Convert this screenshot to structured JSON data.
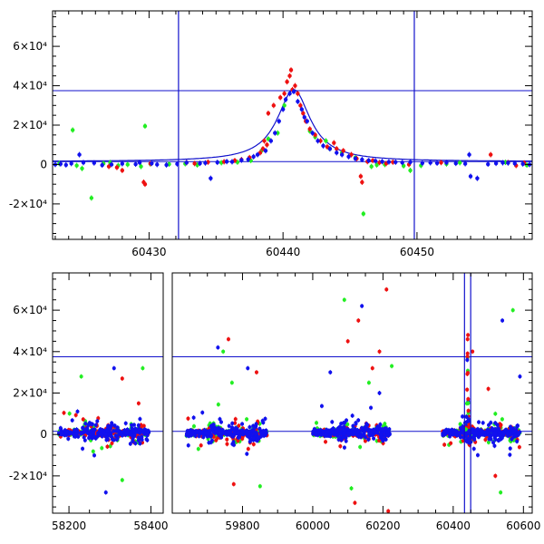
{
  "colors": {
    "series_red": "#ee1111",
    "series_green": "#22ee22",
    "series_blue": "#1111ee",
    "model_line": "#1111cc",
    "frame": "#000000"
  },
  "chart_data": [
    {
      "type": "scatter",
      "title": "",
      "xlabel": "",
      "ylabel": "",
      "xlim": [
        60422.8,
        60458.6
      ],
      "ylim": [
        -38000,
        78000
      ],
      "grid": false,
      "x_ticks": [
        {
          "value": 60430,
          "label": "60430"
        },
        {
          "value": 60440,
          "label": "60440"
        },
        {
          "value": 60450,
          "label": "60450"
        }
      ],
      "y_ticks": [
        {
          "value": -20000,
          "label": "-2×10⁴"
        },
        {
          "value": 0,
          "label": "0"
        },
        {
          "value": 20000,
          "label": "2×10⁴"
        },
        {
          "value": 40000,
          "label": "4×10⁴"
        },
        {
          "value": 60000,
          "label": "6×10⁴"
        }
      ],
      "reference_lines": {
        "horizontal": [
          37500,
          1500
        ],
        "vertical": [
          60432.2,
          60449.8
        ]
      },
      "model_curve": {
        "type": "lorentzian-like",
        "center": 60440.8,
        "peak": 38000,
        "baseline": 1500,
        "width": 1.5
      },
      "series": [
        {
          "color": "red",
          "points": [
            [
              60427.0,
              -1000
            ],
            [
              60427.6,
              -1500
            ],
            [
              60428.0,
              -3000
            ],
            [
              60429.6,
              -9000
            ],
            [
              60429.7,
              -10000
            ],
            [
              60430.1,
              500
            ],
            [
              60432.8,
              1000
            ],
            [
              60433.4,
              500
            ],
            [
              60434.4,
              1200
            ],
            [
              60435.6,
              1400
            ],
            [
              60436.4,
              2000
            ],
            [
              60436.9,
              2500
            ],
            [
              60437.5,
              3500
            ],
            [
              60438.3,
              6000
            ],
            [
              60438.8,
              10000
            ],
            [
              60438.6,
              12000
            ],
            [
              60438.5,
              8000
            ],
            [
              60438.9,
              26000
            ],
            [
              60439.3,
              30000
            ],
            [
              60439.8,
              34000
            ],
            [
              60440.1,
              36000
            ],
            [
              60440.3,
              42000
            ],
            [
              60440.5,
              45000
            ],
            [
              60440.6,
              48000
            ],
            [
              60440.7,
              38000
            ],
            [
              60440.9,
              40000
            ],
            [
              60441.1,
              36000
            ],
            [
              60441.3,
              30000
            ],
            [
              60441.5,
              26000
            ],
            [
              60441.7,
              22000
            ],
            [
              60442.0,
              18000
            ],
            [
              60442.4,
              15000
            ],
            [
              60442.8,
              12000
            ],
            [
              60443.3,
              9000
            ],
            [
              60443.8,
              11000
            ],
            [
              60444.0,
              8000
            ],
            [
              60444.5,
              7000
            ],
            [
              60445.1,
              5000
            ],
            [
              60445.5,
              3000
            ],
            [
              60445.8,
              -6000
            ],
            [
              60445.9,
              -9000
            ],
            [
              60446.3,
              1500
            ],
            [
              60446.7,
              2000
            ],
            [
              60447.2,
              1000
            ],
            [
              60447.7,
              500
            ],
            [
              60448.2,
              1200
            ],
            [
              60449.4,
              0
            ],
            [
              60451.8,
              1000
            ],
            [
              60455.5,
              5000
            ],
            [
              60456.8,
              1000
            ],
            [
              60457.4,
              -500
            ],
            [
              60458.0,
              800
            ]
          ]
        },
        {
          "color": "green",
          "points": [
            [
              60423.3,
              500
            ],
            [
              60424.3,
              17500
            ],
            [
              60424.6,
              -500
            ],
            [
              60425.0,
              -2000
            ],
            [
              60425.7,
              -17000
            ],
            [
              60426.6,
              500
            ],
            [
              60427.1,
              1000
            ],
            [
              60427.7,
              -500
            ],
            [
              60428.4,
              0
            ],
            [
              60429.4,
              -1000
            ],
            [
              60429.7,
              19500
            ],
            [
              60430.1,
              300
            ],
            [
              60431.5,
              200
            ],
            [
              60432.7,
              400
            ],
            [
              60433.6,
              -200
            ],
            [
              60435.4,
              900
            ],
            [
              60436.6,
              1200
            ],
            [
              60437.6,
              2000
            ],
            [
              60438.4,
              7000
            ],
            [
              60438.9,
              13000
            ],
            [
              60439.6,
              16000
            ],
            [
              60440.1,
              30000
            ],
            [
              60442.0,
              17000
            ],
            [
              60442.4,
              14000
            ],
            [
              60443.2,
              12000
            ],
            [
              60443.5,
              8000
            ],
            [
              60444.4,
              6000
            ],
            [
              60445.4,
              3500
            ],
            [
              60446.0,
              -25000
            ],
            [
              60446.6,
              -1000
            ],
            [
              60447.0,
              -200
            ],
            [
              60447.6,
              0
            ],
            [
              60449.0,
              -700
            ],
            [
              60449.5,
              -3000
            ],
            [
              60450.3,
              -500
            ],
            [
              60452.2,
              300
            ],
            [
              60453.2,
              900
            ],
            [
              60456.6,
              1100
            ],
            [
              60458.2,
              -300
            ]
          ]
        },
        {
          "color": "blue",
          "points": [
            [
              60423.0,
              0
            ],
            [
              60423.4,
              300
            ],
            [
              60423.8,
              -200
            ],
            [
              60424.2,
              500
            ],
            [
              60424.8,
              5000
            ],
            [
              60425.1,
              1000
            ],
            [
              60425.9,
              800
            ],
            [
              60426.5,
              -300
            ],
            [
              60427.2,
              0
            ],
            [
              60428.0,
              400
            ],
            [
              60429.0,
              200
            ],
            [
              60429.3,
              1000
            ],
            [
              60430.2,
              600
            ],
            [
              60430.6,
              0
            ],
            [
              60431.3,
              -200
            ],
            [
              60432.1,
              300
            ],
            [
              60432.8,
              1000
            ],
            [
              60433.8,
              600
            ],
            [
              60434.2,
              800
            ],
            [
              60434.6,
              -7000
            ],
            [
              60435.1,
              1100
            ],
            [
              60435.8,
              1500
            ],
            [
              60436.2,
              1400
            ],
            [
              60436.9,
              2200
            ],
            [
              60437.4,
              2600
            ],
            [
              60437.8,
              4000
            ],
            [
              60438.1,
              5000
            ],
            [
              60438.7,
              7000
            ],
            [
              60439.1,
              12000
            ],
            [
              60439.4,
              16000
            ],
            [
              60439.7,
              22000
            ],
            [
              60440.0,
              28000
            ],
            [
              60440.2,
              33000
            ],
            [
              60440.5,
              36000
            ],
            [
              60440.8,
              37000
            ],
            [
              60441.1,
              32000
            ],
            [
              60441.4,
              28000
            ],
            [
              60441.6,
              24000
            ],
            [
              60441.8,
              22000
            ],
            [
              60442.2,
              16000
            ],
            [
              60442.6,
              12000
            ],
            [
              60443.0,
              9500
            ],
            [
              60443.5,
              8000
            ],
            [
              60444.0,
              6000
            ],
            [
              60444.4,
              5000
            ],
            [
              60444.9,
              4000
            ],
            [
              60445.4,
              3000
            ],
            [
              60445.9,
              2500
            ],
            [
              60446.4,
              2000
            ],
            [
              60446.9,
              1800
            ],
            [
              60447.4,
              1500
            ],
            [
              60447.9,
              1300
            ],
            [
              60448.4,
              1200
            ],
            [
              60448.9,
              1000
            ],
            [
              60449.5,
              1200
            ],
            [
              60450.4,
              700
            ],
            [
              60451.0,
              900
            ],
            [
              60451.5,
              700
            ],
            [
              60452.2,
              1000
            ],
            [
              60452.9,
              600
            ],
            [
              60453.6,
              400
            ],
            [
              60453.9,
              5000
            ],
            [
              60454.0,
              -6000
            ],
            [
              60454.5,
              -7000
            ],
            [
              60455.3,
              200
            ],
            [
              60455.9,
              600
            ],
            [
              60456.4,
              900
            ],
            [
              60456.8,
              800
            ],
            [
              60457.3,
              500
            ],
            [
              60457.9,
              300
            ],
            [
              60458.4,
              0
            ]
          ]
        }
      ]
    },
    {
      "type": "scatter",
      "title": "",
      "xlabel": "",
      "ylabel": "",
      "segments": [
        {
          "xlim": [
            58160,
            58430
          ],
          "x_ticks": [
            {
              "value": 58200,
              "label": "58200"
            },
            {
              "value": 58400,
              "label": "58400"
            }
          ]
        },
        {
          "xlim": [
            59600,
            60625
          ],
          "x_ticks": [
            {
              "value": 59800,
              "label": "59800"
            },
            {
              "value": 60000,
              "label": "60000"
            },
            {
              "value": 60200,
              "label": "60200"
            },
            {
              "value": 60400,
              "label": "60400"
            },
            {
              "value": 60600,
              "label": "60600"
            }
          ]
        }
      ],
      "ylim": [
        -38000,
        78000
      ],
      "grid": false,
      "y_ticks": [
        {
          "value": -20000,
          "label": "-2×10⁴"
        },
        {
          "value": 0,
          "label": "0"
        },
        {
          "value": 20000,
          "label": "2×10⁴"
        },
        {
          "value": 40000,
          "label": "4×10⁴"
        },
        {
          "value": 60000,
          "label": "6×10⁴"
        }
      ],
      "reference_lines": {
        "horizontal": [
          37500,
          1500
        ],
        "vertical": [
          60432.2,
          60449.8
        ]
      },
      "seasons": [
        {
          "x_range": [
            58175,
            58395
          ],
          "clusters": [
            [
              58230,
              58270
            ],
            [
              58290,
              58320
            ],
            [
              58350,
              58380
            ]
          ]
        },
        {
          "x_range": [
            59640,
            59870
          ],
          "clusters": [
            [
              59700,
              59740
            ],
            [
              59770,
              59800
            ],
            [
              59820,
              59850
            ]
          ]
        },
        {
          "x_range": [
            60000,
            60220
          ],
          "clusters": [
            [
              60070,
              60100
            ],
            [
              60130,
              60160
            ],
            [
              60180,
              60210
            ]
          ]
        },
        {
          "x_range": [
            60370,
            60590
          ],
          "clusters": [
            [
              60420,
              60460
            ],
            [
              60500,
              60540
            ],
            [
              60560,
              60585
            ]
          ]
        }
      ],
      "highlights": {
        "red": [
          [
            58330,
            27000
          ],
          [
            58370,
            15000
          ],
          [
            59760,
            46000
          ],
          [
            59775,
            -24000
          ],
          [
            59840,
            30000
          ],
          [
            60100,
            45000
          ],
          [
            60130,
            55000
          ],
          [
            60170,
            32000
          ],
          [
            60190,
            40000
          ],
          [
            60210,
            70000
          ],
          [
            60120,
            -33000
          ],
          [
            60215,
            -37000
          ],
          [
            60441,
            46000
          ],
          [
            60442,
            48000
          ],
          [
            60455,
            40000
          ],
          [
            60500,
            22000
          ],
          [
            60520,
            -20000
          ]
        ],
        "green": [
          [
            58230,
            28000
          ],
          [
            58380,
            32000
          ],
          [
            58330,
            -22000
          ],
          [
            59745,
            40000
          ],
          [
            59770,
            25000
          ],
          [
            59850,
            -25000
          ],
          [
            60090,
            65000
          ],
          [
            60160,
            25000
          ],
          [
            60225,
            33000
          ],
          [
            60110,
            -26000
          ],
          [
            60420,
            5000
          ],
          [
            60520,
            10000
          ],
          [
            60535,
            -28000
          ],
          [
            60570,
            60000
          ]
        ],
        "blue": [
          [
            58290,
            -28000
          ],
          [
            58310,
            32000
          ],
          [
            59730,
            42000
          ],
          [
            59815,
            32000
          ],
          [
            60050,
            30000
          ],
          [
            60140,
            62000
          ],
          [
            60190,
            20000
          ],
          [
            60440,
            36000
          ],
          [
            60470,
            -10000
          ],
          [
            60540,
            55000
          ],
          [
            60590,
            28000
          ]
        ]
      }
    }
  ]
}
